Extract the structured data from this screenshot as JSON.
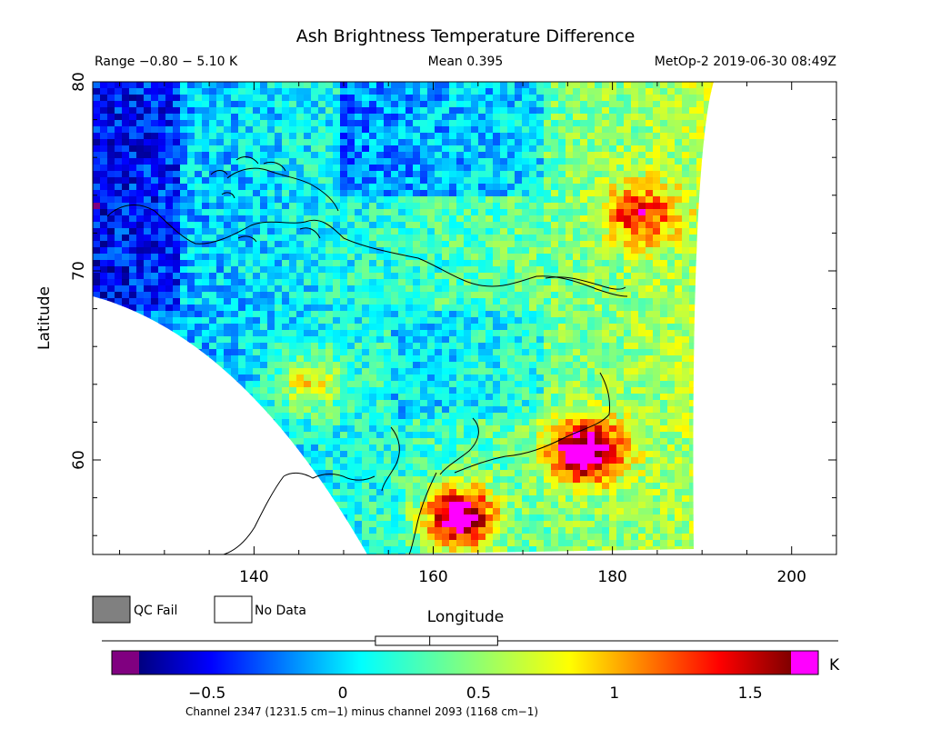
{
  "title": "Ash Brightness Temperature Difference",
  "header": {
    "range": "Range −0.80 − 5.10 K",
    "mean": "Mean 0.395",
    "satellite": "MetOp-2 2019-06-30 08:49Z"
  },
  "legend": {
    "qc_fail": "QC Fail",
    "no_data": "No Data",
    "qc_fail_color": "#808080",
    "no_data_color": "#ffffff"
  },
  "colorbar": {
    "unit": "K",
    "ticks": [
      "−0.5",
      "0",
      "0.5",
      "1",
      "1.5"
    ],
    "tick_values": [
      -0.5,
      0,
      0.5,
      1,
      1.5
    ],
    "range": [
      -0.75,
      1.65
    ],
    "under_color": "#800080",
    "over_color": "#ff00ff",
    "box_plot": {
      "min": 0.12,
      "q1": 0.12,
      "median": 0.32,
      "q3": 0.57,
      "max": 0.57
    },
    "caption": "Channel 2347 (1231.5 cm−1) minus channel 2093 (1168 cm−1)"
  },
  "chart_data": {
    "type": "heatmap",
    "title": "Ash Brightness Temperature Difference",
    "xlabel": "Longitude",
    "ylabel": "Latitude",
    "xlim": [
      122,
      205
    ],
    "ylim": [
      55,
      80
    ],
    "xticks": [
      140,
      160,
      180,
      200
    ],
    "yticks": [
      60,
      70,
      80
    ],
    "units": "K",
    "value_range": [
      -0.8,
      5.1
    ],
    "mean": 0.395,
    "grid": false,
    "hotspots": [
      {
        "lon": 163,
        "lat": 57,
        "value": ">1.6"
      },
      {
        "lon": 177,
        "lat": 60.5,
        "value": ">1.6"
      },
      {
        "lon": 183,
        "lat": 73,
        "value": 1.2
      },
      {
        "lon": 146,
        "lat": 64,
        "value": 1.0
      }
    ]
  }
}
